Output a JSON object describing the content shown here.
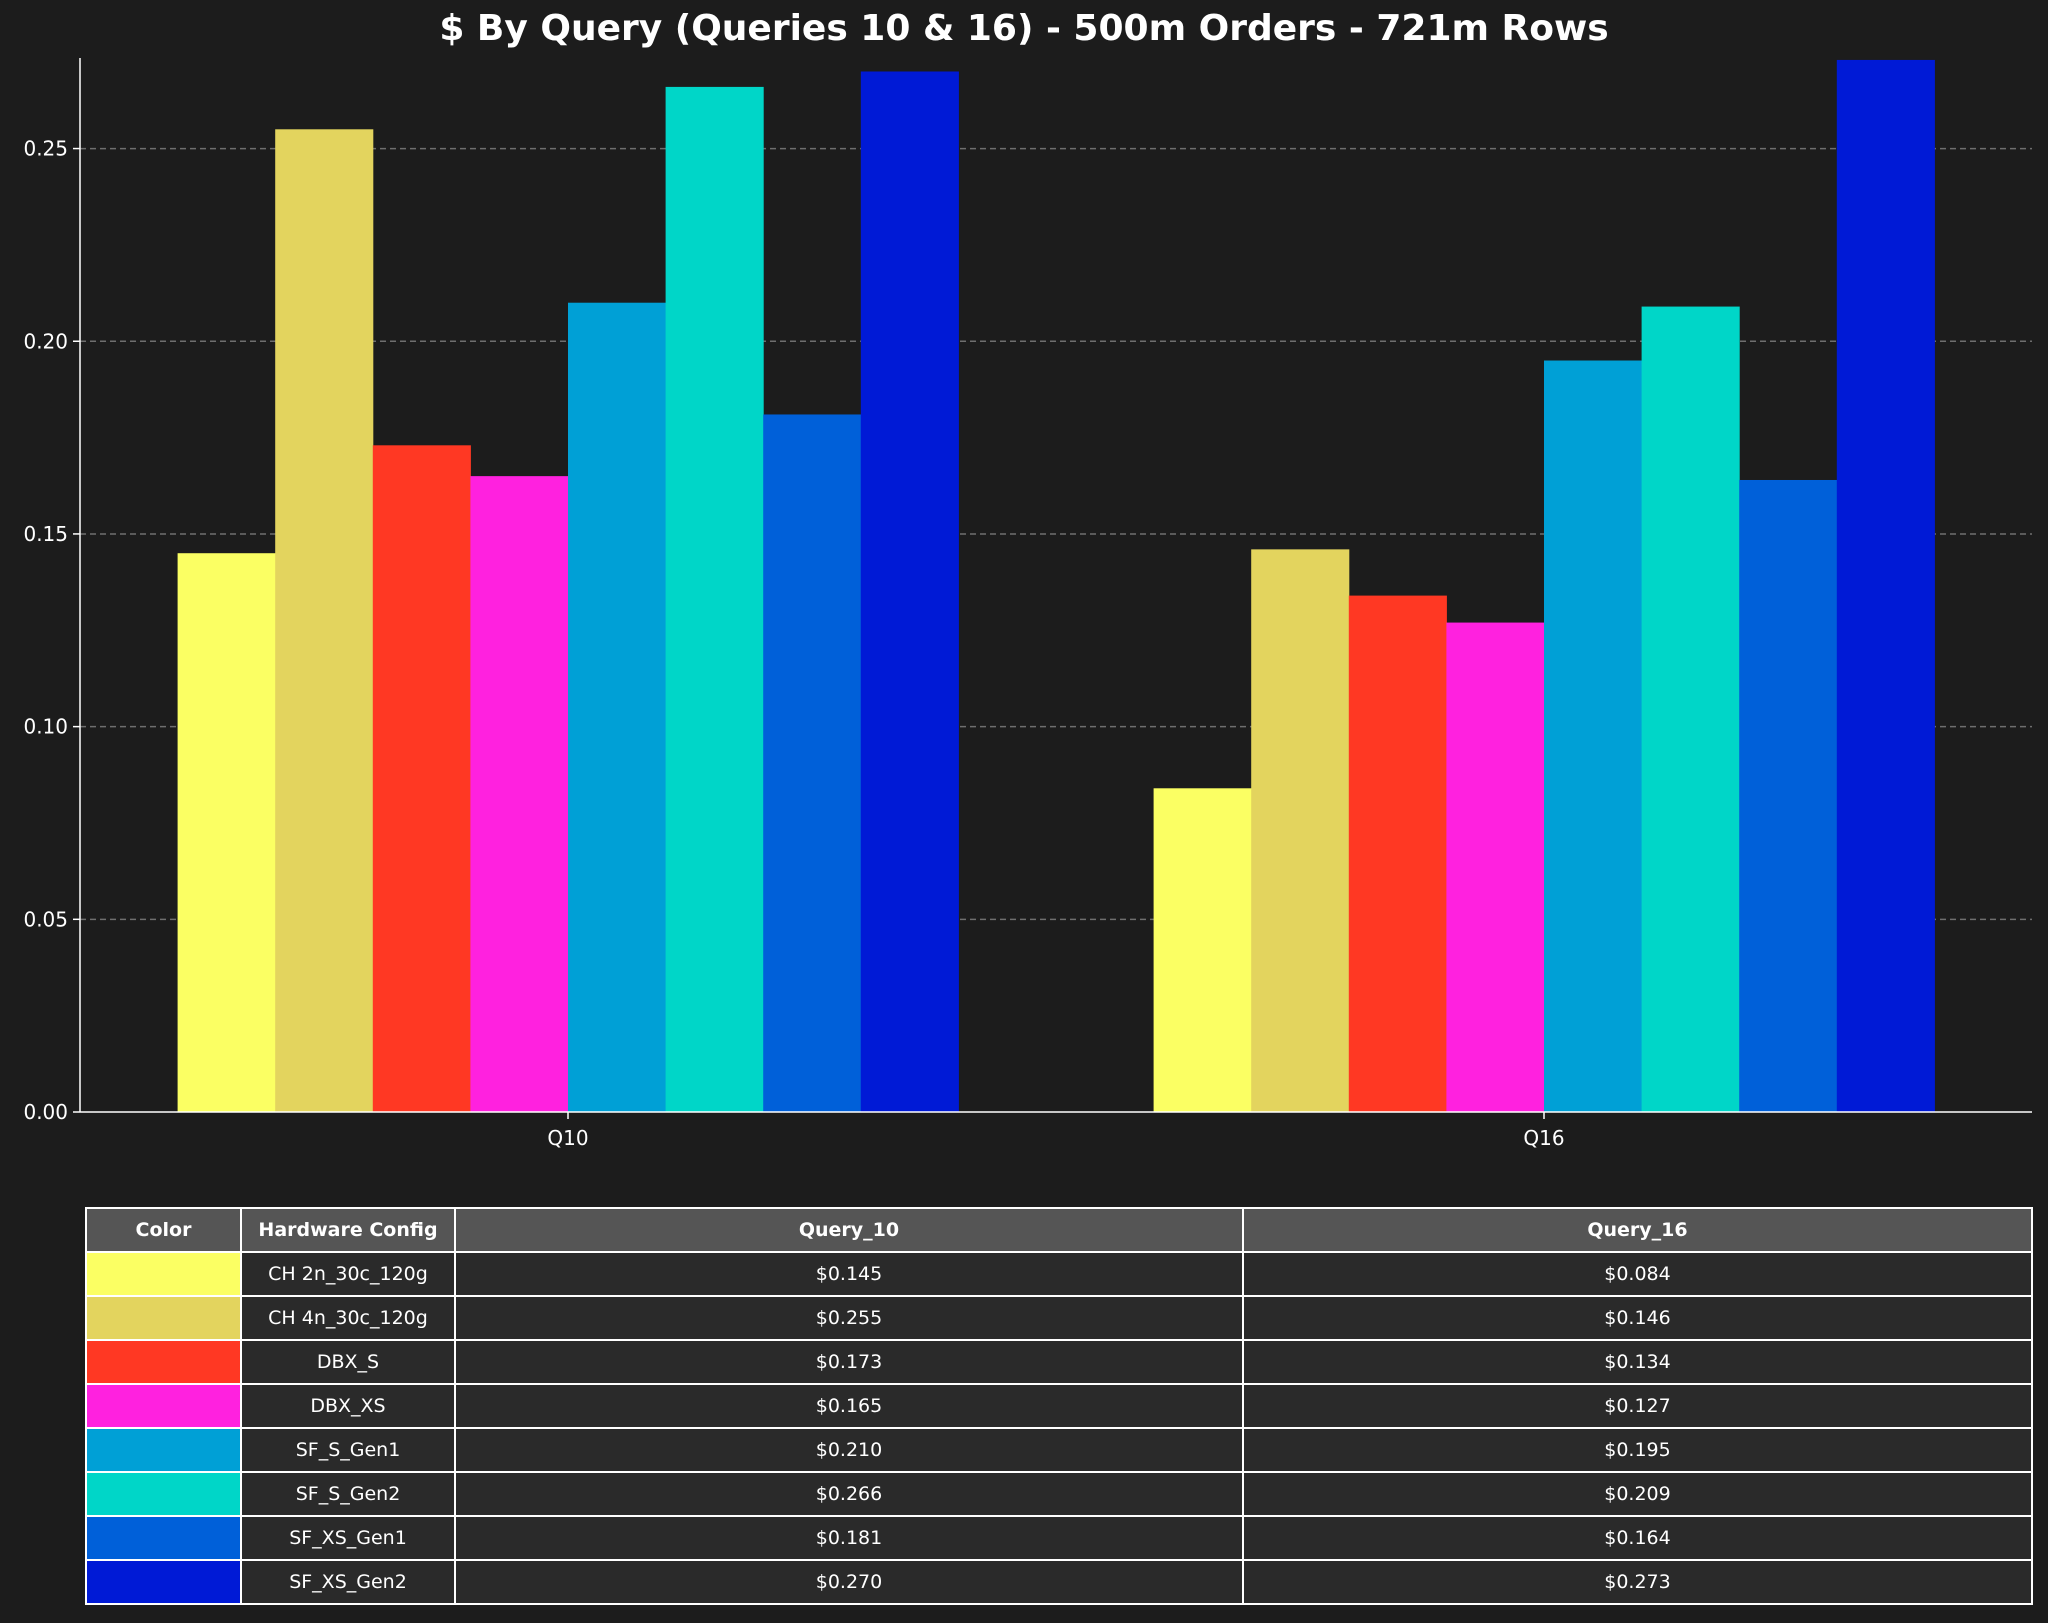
{
  "colors": {
    "background": "#1c1c1c",
    "text": "#ffffff",
    "grid": "#6e6e6e",
    "header_bg": "#555555",
    "cell_bg": "#2a2a2a"
  },
  "chart_data": {
    "type": "bar",
    "title": "$ By Query (Queries 10 & 16) - 500m Orders - 721m Rows",
    "xlabel": "",
    "ylabel": "",
    "categories": [
      "Q10",
      "Q16"
    ],
    "ylim": [
      0,
      0.2735
    ],
    "yticks": [
      "0.00",
      "0.05",
      "0.10",
      "0.15",
      "0.20",
      "0.25"
    ],
    "grid": true,
    "series": [
      {
        "name": "CH 2n_30c_120g",
        "color": "#fbff63",
        "values": [
          0.145,
          0.084
        ]
      },
      {
        "name": "CH 4n_30c_120g",
        "color": "#e3d45e",
        "values": [
          0.255,
          0.146
        ]
      },
      {
        "name": "DBX_S",
        "color": "#ff3823",
        "values": [
          0.173,
          0.134
        ]
      },
      {
        "name": "DBX_XS",
        "color": "#ff21df",
        "values": [
          0.165,
          0.127
        ]
      },
      {
        "name": "SF_S_Gen1",
        "color": "#00a0d6",
        "values": [
          0.21,
          0.195
        ]
      },
      {
        "name": "SF_S_Gen2",
        "color": "#00d6c8",
        "values": [
          0.266,
          0.209
        ]
      },
      {
        "name": "SF_XS_Gen1",
        "color": "#0060d9",
        "values": [
          0.181,
          0.164
        ]
      },
      {
        "name": "SF_XS_Gen2",
        "color": "#001ad6",
        "values": [
          0.27,
          0.273
        ]
      }
    ]
  },
  "table": {
    "headers": [
      "Color",
      "Hardware Config",
      "Query_10",
      "Query_16"
    ],
    "rows": [
      {
        "config": "CH 2n_30c_120g",
        "q10": "$0.145",
        "q16": "$0.084"
      },
      {
        "config": "CH 4n_30c_120g",
        "q10": "$0.255",
        "q16": "$0.146"
      },
      {
        "config": "DBX_S",
        "q10": "$0.173",
        "q16": "$0.134"
      },
      {
        "config": "DBX_XS",
        "q10": "$0.165",
        "q16": "$0.127"
      },
      {
        "config": "SF_S_Gen1",
        "q10": "$0.210",
        "q16": "$0.195"
      },
      {
        "config": "SF_S_Gen2",
        "q10": "$0.266",
        "q16": "$0.209"
      },
      {
        "config": "SF_XS_Gen1",
        "q10": "$0.181",
        "q16": "$0.164"
      },
      {
        "config": "SF_XS_Gen2",
        "q10": "$0.270",
        "q16": "$0.273"
      }
    ]
  }
}
